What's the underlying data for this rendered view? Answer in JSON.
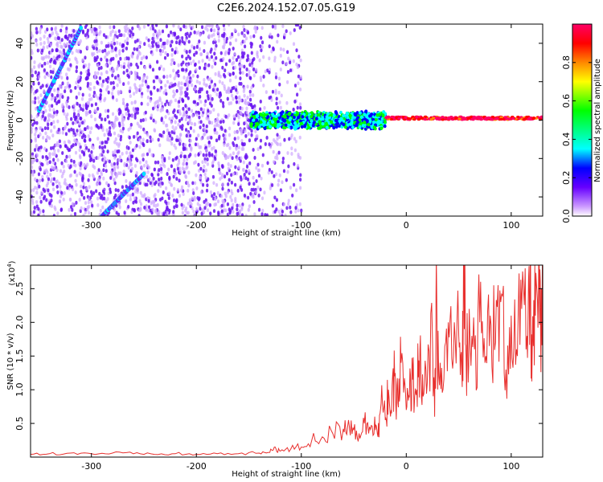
{
  "title": "C2E6.2024.152.07.05.G19",
  "chart_data": [
    {
      "type": "heatmap",
      "xlabel": "Height of straight line (km)",
      "ylabel": "Frequency (Hz)",
      "xlim": [
        -358,
        130
      ],
      "ylim": [
        -50,
        50
      ],
      "x_ticks": [
        -300,
        -200,
        -100,
        0,
        100
      ],
      "x_tick_labels": [
        "-300",
        "-200",
        "-100",
        "0",
        "100"
      ],
      "y_ticks": [
        -40,
        -20,
        0,
        20,
        40
      ],
      "y_tick_labels": [
        "-40",
        "-20",
        "0",
        "20",
        "40"
      ],
      "colorbar": {
        "label": "Normalized spectral amplitude",
        "range": [
          0,
          1
        ],
        "ticks": [
          0.0,
          0.2,
          0.4,
          0.6,
          0.8
        ],
        "tick_labels": [
          "0.0",
          "0.2",
          "0.4",
          "0.6",
          "0.8"
        ],
        "colors": [
          "#ffffff",
          "#cc99ff",
          "#6600ff",
          "#0000ff",
          "#00ffff",
          "#00ff00",
          "#ffff00",
          "#ff8800",
          "#ff0000",
          "#ff0066"
        ]
      },
      "features": [
        {
          "name": "diffuse noise",
          "x_range": [
            -358,
            -145
          ],
          "y_range": [
            -50,
            50
          ],
          "level": 0.15
        },
        {
          "name": "sparse noise",
          "x_range": [
            -145,
            -100
          ],
          "y_range": [
            -50,
            50
          ],
          "level": 0.05
        },
        {
          "name": "diagonal streak",
          "x": [
            -350,
            -310
          ],
          "y": [
            5,
            48
          ],
          "level": 0.35
        },
        {
          "name": "diagonal streak",
          "x": [
            -290,
            -250
          ],
          "y": [
            -50,
            -28
          ],
          "level": 0.35
        },
        {
          "name": "carrier band",
          "x_range": [
            -148,
            -20
          ],
          "y_center": 0,
          "width": 8,
          "level": 0.45
        },
        {
          "name": "carrier line",
          "x_range": [
            -20,
            130
          ],
          "y_center": 1,
          "width": 3,
          "level": 0.95
        }
      ]
    },
    {
      "type": "line",
      "xlabel": "Height of straight line (km)",
      "ylabel": "SNR (10 * v/v)",
      "y_multiplier": "(x10",
      "y_multiplier_exp": "4",
      "y_multiplier_close": ")",
      "xlim": [
        -358,
        130
      ],
      "ylim": [
        0,
        28500
      ],
      "x_ticks": [
        -300,
        -200,
        -100,
        0,
        100
      ],
      "x_tick_labels": [
        "-300",
        "-200",
        "-100",
        "0",
        "100"
      ],
      "y_ticks": [
        5000,
        10000,
        15000,
        20000,
        25000
      ],
      "y_tick_labels": [
        "0.5",
        "1.0",
        "1.5",
        "2.0",
        "2.5"
      ],
      "series": [
        {
          "color": "#e8302e",
          "x": [
            -358,
            -340,
            -320,
            -300,
            -280,
            -260,
            -240,
            -220,
            -200,
            -180,
            -160,
            -140,
            -130,
            -125,
            -120,
            -110,
            -100,
            -90,
            -80,
            -70,
            -60,
            -55,
            -50,
            -45,
            -40,
            -35,
            -30,
            -27,
            -24,
            -20,
            -17,
            -14,
            -11,
            -8,
            -5,
            0,
            3,
            6,
            10,
            13,
            16,
            20,
            25,
            27,
            29,
            31,
            35,
            40,
            45,
            50,
            53,
            55,
            57,
            60,
            65,
            70,
            75,
            80,
            85,
            90,
            95,
            100,
            105,
            110,
            115,
            118,
            120,
            123,
            126,
            128,
            130
          ],
          "y": [
            400,
            500,
            600,
            500,
            600,
            500,
            400,
            500,
            400,
            500,
            500,
            600,
            700,
            1500,
            900,
            1200,
            1500,
            2500,
            3000,
            3500,
            4200,
            5500,
            4000,
            3500,
            5000,
            4500,
            6000,
            3000,
            8000,
            5500,
            10000,
            6500,
            12000,
            8000,
            14000,
            7000,
            9000,
            11500,
            10000,
            16000,
            9000,
            11000,
            17500,
            6000,
            24000,
            12000,
            10000,
            20000,
            15000,
            18000,
            12000,
            28500,
            15000,
            22000,
            16000,
            20000,
            14000,
            21000,
            17000,
            23000,
            13000,
            21000,
            16000,
            22000,
            18000,
            25500,
            15000,
            21000,
            25000,
            18000,
            22000
          ]
        }
      ]
    }
  ]
}
